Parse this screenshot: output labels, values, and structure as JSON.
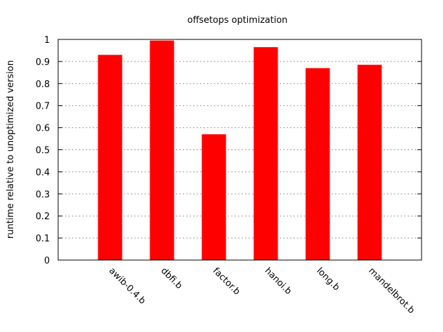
{
  "chart_data": {
    "type": "bar",
    "title": "offsetops optimization",
    "xlabel": "",
    "ylabel": "runtime relative to unoptimized version",
    "categories": [
      "awib-0.4.b",
      "dbfi.b",
      "factor.b",
      "hanoi.b",
      "long.b",
      "mandelbrot.b"
    ],
    "values": [
      0.93,
      0.995,
      0.57,
      0.965,
      0.87,
      0.885
    ],
    "ylim": [
      0,
      1
    ],
    "yticks": [
      "0",
      "0.1",
      "0.2",
      "0.3",
      "0.4",
      "0.5",
      "0.6",
      "0.7",
      "0.8",
      "0.9",
      "1"
    ],
    "grid": true,
    "bar_color": "#ff0000"
  }
}
